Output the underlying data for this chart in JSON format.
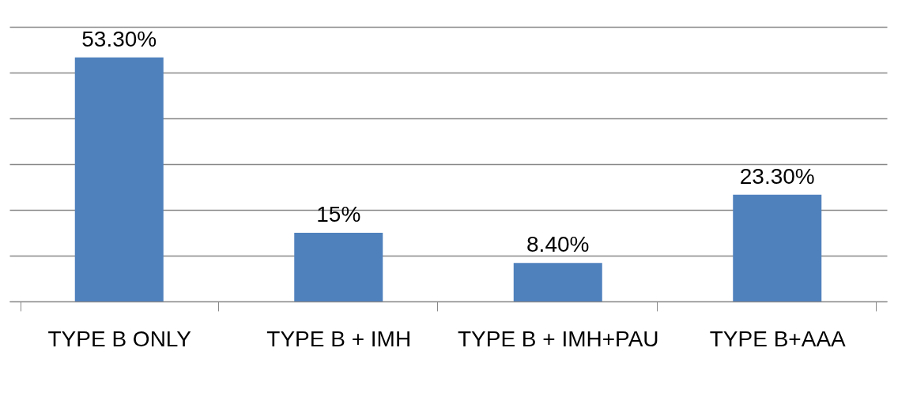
{
  "chart_data": {
    "type": "bar",
    "categories": [
      "TYPE B ONLY",
      "TYPE B + IMH",
      "TYPE B + IMH+PAU",
      "TYPE B+AAA"
    ],
    "values": [
      53.3,
      15,
      8.4,
      23.3
    ],
    "value_labels": [
      "53.30%",
      "15%",
      "8.40%",
      "23.30%"
    ],
    "color": "#4f81bd",
    "ylim": [
      0,
      60
    ],
    "yticks": [
      {
        "value": 0,
        "label": null
      },
      {
        "value": 10,
        "label": null
      },
      {
        "value": 20,
        "label": null
      },
      {
        "value": 30,
        "label": null
      },
      {
        "value": 40,
        "label": null
      },
      {
        "value": 50,
        "label": null
      },
      {
        "value": 60,
        "label": null
      }
    ],
    "tick_labels": "x",
    "grid": "y"
  }
}
